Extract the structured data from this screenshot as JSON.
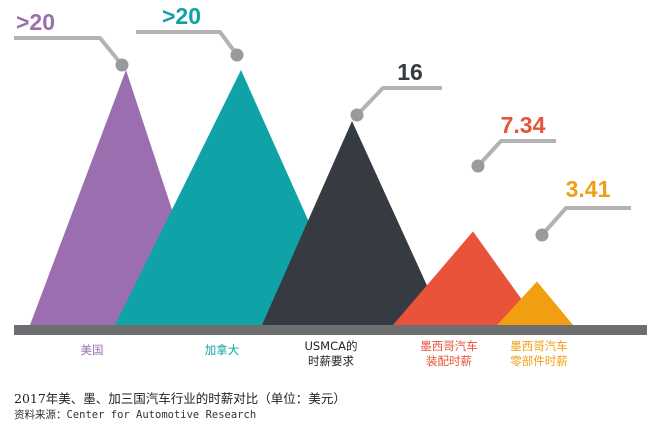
{
  "chart_data": {
    "type": "bar",
    "style": "triangle-peaks",
    "categories": [
      "美国",
      "加拿大",
      "USMCA的\n时薪要求",
      "墨西哥汽车\n装配时薪",
      "墨西哥汽车\n零部件时薪"
    ],
    "value_labels": [
      ">20",
      ">20",
      "16",
      "7.34",
      "3.41"
    ],
    "values": [
      20,
      20,
      16,
      7.34,
      3.41
    ],
    "colors": [
      "#9b6faf",
      "#0fa3a8",
      "#353b40",
      "#e8533a",
      "#f29e12"
    ],
    "label_colors": [
      "#9b6faf",
      "#0fa3a8",
      "#353b40",
      "#e8533a",
      "#f29e12"
    ],
    "category_label_colors": [
      "#9b6faf",
      "#0fa3a8",
      "#222222",
      "#e8533a",
      "#f29e12"
    ],
    "unit": "美元",
    "xlabel": "",
    "ylabel": "",
    "grid": false,
    "legend": "none"
  },
  "caption": "2017年美、墨、加三国汽车行业的时薪对比（单位：美元）",
  "source": "资料来源：Center for Automotive Research",
  "colors": {
    "baseline": "#6d6e70",
    "callout": "#b3b3b3",
    "dot": "#9a9a9a"
  }
}
